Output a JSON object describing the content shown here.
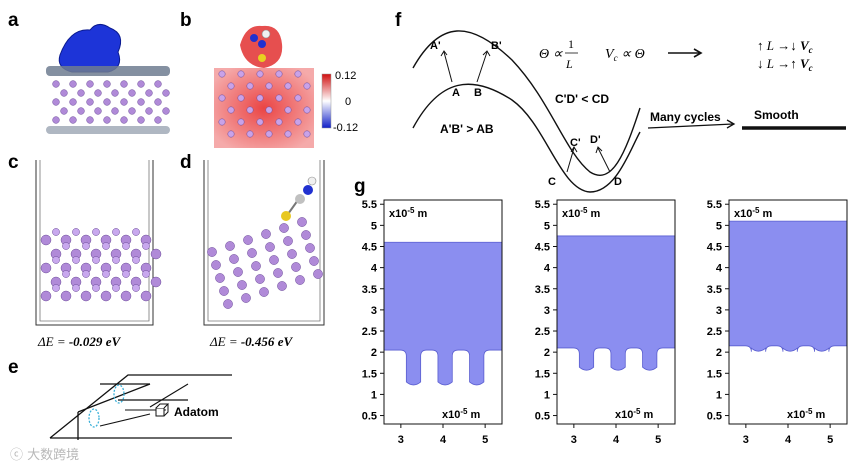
{
  "panels": {
    "a": {
      "label": "a"
    },
    "b": {
      "label": "b",
      "colorbar": {
        "max": "0.12",
        "mid": "0",
        "min": "-0.12"
      }
    },
    "c": {
      "label": "c",
      "energy_prefix": "ΔE = ",
      "energy_value": "-0.029",
      "energy_unit": " eV"
    },
    "d": {
      "label": "d",
      "energy_prefix": "ΔE = ",
      "energy_value": "-0.456",
      "energy_unit": " eV"
    },
    "e": {
      "label": "e",
      "adatom": "Adatom"
    },
    "f": {
      "label": "f",
      "points_outer": [
        "A'",
        "B'",
        "C'",
        "D'"
      ],
      "points_inner": [
        "A",
        "B",
        "C",
        "D"
      ],
      "ineq_top": "A'B' > AB",
      "ineq_bottom": "C'D' < CD",
      "theta_rel": "Θ ∝ 1/L",
      "vc_rel": "Vc ∝ Θ",
      "rule1": "↑ L →↓ Vc",
      "rule2": "↓ L →↑ Vc",
      "many_cycles": "Many cycles",
      "smooth": "Smooth"
    },
    "g": {
      "label": "g"
    }
  },
  "colors": {
    "fill": "#8b8ef0",
    "electron_blue": "#1d34d8",
    "atom_purple": "#b08ad8",
    "charge_red": "#e85050"
  },
  "chart_data": [
    {
      "type": "area",
      "title": "",
      "unit_y": "x10-5 m",
      "unit_x": "x10-5 m",
      "x_ticks": [
        "3",
        "4",
        "5"
      ],
      "y_ticks": [
        "0.5",
        "1",
        "1.5",
        "2",
        "2.5",
        "3",
        "3.5",
        "4",
        "4.5",
        "5",
        "5.5"
      ],
      "xlim": [
        2.6,
        5.4
      ],
      "ylim": [
        0.3,
        5.6
      ],
      "top_surface": 4.6,
      "base": 2.05,
      "valley_depth": 1.2,
      "valleys_x": [
        3.3,
        4.05,
        4.8
      ]
    },
    {
      "type": "area",
      "title": "",
      "unit_y": "x10-5 m",
      "unit_x": "x10-5 m",
      "x_ticks": [
        "3",
        "4",
        "5"
      ],
      "y_ticks": [
        "0.5",
        "1",
        "1.5",
        "2",
        "2.5",
        "3",
        "3.5",
        "4",
        "4.5",
        "5",
        "5.5"
      ],
      "xlim": [
        2.6,
        5.4
      ],
      "ylim": [
        0.3,
        5.6
      ],
      "top_surface": 4.75,
      "base": 2.1,
      "valley_depth": 1.55,
      "valleys_x": [
        3.3,
        4.05,
        4.8
      ]
    },
    {
      "type": "area",
      "title": "",
      "unit_y": "x10-5 m",
      "unit_x": "x10-5 m",
      "x_ticks": [
        "3",
        "4",
        "5"
      ],
      "y_ticks": [
        "0.5",
        "1",
        "1.5",
        "2",
        "2.5",
        "3",
        "3.5",
        "4",
        "4.5",
        "5",
        "5.5"
      ],
      "xlim": [
        2.6,
        5.4
      ],
      "ylim": [
        0.3,
        5.6
      ],
      "top_surface": 5.1,
      "base": 2.15,
      "valley_depth": 2.0,
      "valleys_x": [
        3.3,
        4.05,
        4.8
      ]
    }
  ]
}
